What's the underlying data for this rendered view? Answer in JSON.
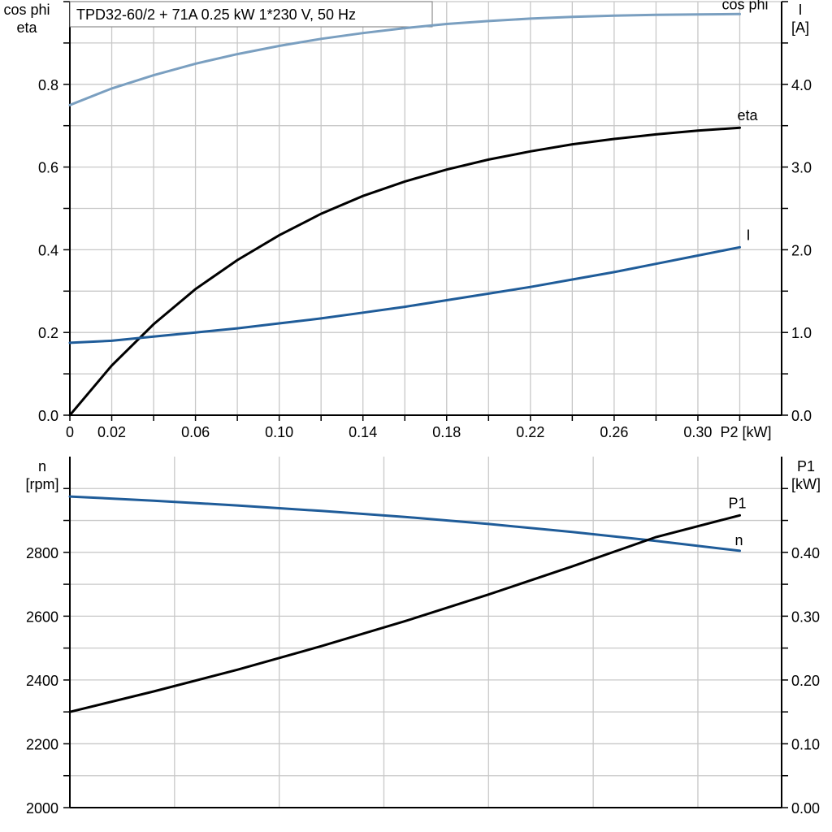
{
  "chart_data": [
    {
      "type": "line",
      "title": "TPD32-60/2 + 71A   0.25 kW   1*230 V, 50 Hz",
      "xlabel": "P2 [kW]",
      "xlim": [
        0,
        0.34
      ],
      "x_ticks": [
        "0",
        "0.02",
        "0.06",
        "0.10",
        "0.14",
        "0.18",
        "0.22",
        "0.26",
        "0.30"
      ],
      "x_tick_values": [
        0,
        0.02,
        0.06,
        0.1,
        0.14,
        0.18,
        0.22,
        0.26,
        0.3
      ],
      "ylabel_left": "cos phi\neta",
      "ylim_left": [
        0,
        1.0
      ],
      "y_ticks_left": [
        "0.0",
        "0.2",
        "0.4",
        "0.6",
        "0.8"
      ],
      "ylabel_right": "I\n[A]",
      "ylim_right": [
        0,
        5.0
      ],
      "y_ticks_right": [
        "0.0",
        "1.0",
        "2.0",
        "3.0",
        "4.0"
      ],
      "grid": true,
      "series": [
        {
          "name": "cos phi",
          "axis": "left",
          "color": "#7a9fc0",
          "x": [
            0,
            0.02,
            0.04,
            0.06,
            0.08,
            0.1,
            0.12,
            0.14,
            0.16,
            0.18,
            0.2,
            0.22,
            0.24,
            0.26,
            0.28,
            0.3,
            0.32
          ],
          "y": [
            0.75,
            0.79,
            0.822,
            0.85,
            0.873,
            0.893,
            0.91,
            0.924,
            0.936,
            0.946,
            0.953,
            0.959,
            0.963,
            0.966,
            0.968,
            0.969,
            0.97
          ]
        },
        {
          "name": "eta",
          "axis": "left",
          "color": "#000000",
          "x": [
            0,
            0.02,
            0.04,
            0.06,
            0.08,
            0.1,
            0.12,
            0.14,
            0.16,
            0.18,
            0.2,
            0.22,
            0.24,
            0.26,
            0.28,
            0.3,
            0.32
          ],
          "y": [
            0.0,
            0.12,
            0.22,
            0.305,
            0.375,
            0.435,
            0.487,
            0.53,
            0.565,
            0.594,
            0.618,
            0.638,
            0.655,
            0.668,
            0.679,
            0.688,
            0.695
          ]
        },
        {
          "name": "I",
          "axis": "right",
          "color": "#1f5c99",
          "x": [
            0,
            0.02,
            0.04,
            0.06,
            0.08,
            0.1,
            0.12,
            0.14,
            0.16,
            0.18,
            0.2,
            0.22,
            0.24,
            0.26,
            0.28,
            0.3,
            0.32
          ],
          "y": [
            0.875,
            0.9,
            0.95,
            1.0,
            1.05,
            1.11,
            1.17,
            1.24,
            1.31,
            1.39,
            1.47,
            1.55,
            1.64,
            1.73,
            1.83,
            1.93,
            2.03
          ]
        }
      ]
    },
    {
      "type": "line",
      "xlim": [
        0,
        0.34
      ],
      "ylabel_left": "n\n[rpm]",
      "ylim_left": [
        2000,
        3100
      ],
      "y_ticks_left": [
        "2000",
        "2200",
        "2400",
        "2600",
        "2800"
      ],
      "ylabel_right": "P1\n[kW]",
      "ylim_right": [
        0,
        0.55
      ],
      "y_ticks_right": [
        "0.00",
        "0.10",
        "0.20",
        "0.30",
        "0.40"
      ],
      "grid": true,
      "series": [
        {
          "name": "n",
          "axis": "left",
          "color": "#1f5c99",
          "x": [
            0,
            0.04,
            0.08,
            0.12,
            0.16,
            0.2,
            0.24,
            0.28,
            0.32
          ],
          "y": [
            2975,
            2962,
            2947,
            2930,
            2911,
            2889,
            2864,
            2836,
            2805
          ]
        },
        {
          "name": "P1",
          "axis": "right",
          "color": "#000000",
          "x": [
            0,
            0.04,
            0.08,
            0.12,
            0.16,
            0.2,
            0.24,
            0.28,
            0.32
          ],
          "y": [
            0.15,
            0.182,
            0.216,
            0.253,
            0.292,
            0.334,
            0.378,
            0.424,
            0.458
          ]
        }
      ]
    }
  ]
}
